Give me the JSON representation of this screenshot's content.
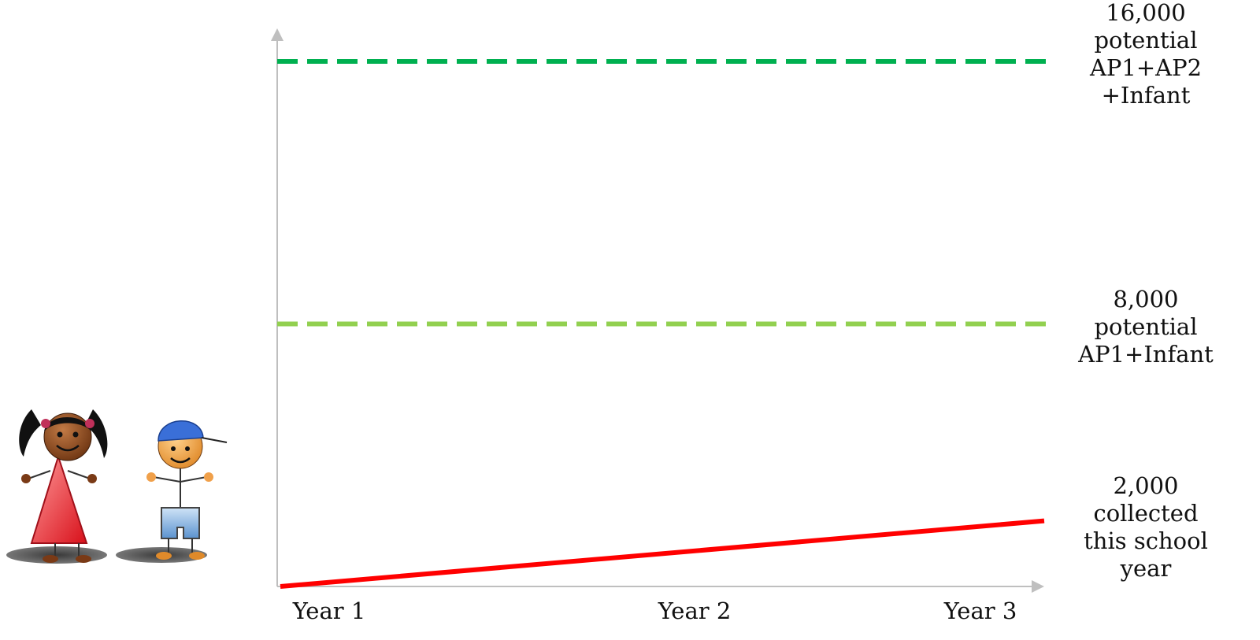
{
  "chart_data": {
    "type": "line",
    "title": "",
    "xlabel": "",
    "ylabel": "",
    "categories": [
      "Year 1",
      "Year 2",
      "Year 3"
    ],
    "ylim": [
      0,
      18000
    ],
    "grid": false,
    "legend": "none",
    "series": [
      {
        "key": "ap1_ap2_infant",
        "style": "dashed",
        "color": "#00b050",
        "x": [
          1,
          3
        ],
        "values": [
          16000,
          16000
        ],
        "annotation": [
          "16,000",
          "potential",
          "AP1+AP2",
          "+Infant"
        ]
      },
      {
        "key": "ap1_infant",
        "style": "dashed",
        "color": "#92d050",
        "x": [
          1,
          3
        ],
        "values": [
          8000,
          8000
        ],
        "annotation": [
          "8,000",
          "potential",
          "AP1+Infant"
        ]
      },
      {
        "key": "collected",
        "style": "solid",
        "color": "#ff0000",
        "x": [
          1,
          3
        ],
        "values": [
          0,
          2000
        ],
        "annotation": [
          "2,000",
          "collected",
          "this school",
          "year"
        ]
      }
    ]
  },
  "colors": {
    "axis": "#bfbfbf",
    "girl_dress": "#e8323a",
    "boy_cap": "#3a6fd8",
    "boy_shorts": "#7fb0e0",
    "skin_girl": "#8a4a22",
    "skin_boy": "#f0a04a"
  },
  "illustration": {
    "icons": [
      "girl-figure-icon",
      "boy-figure-icon"
    ]
  }
}
